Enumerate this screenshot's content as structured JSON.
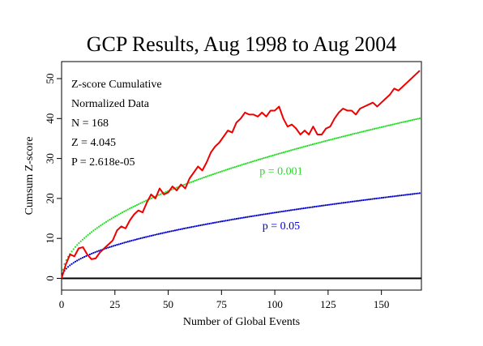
{
  "chart_data": {
    "type": "line",
    "title": "GCP Results, Aug 1998 to Aug 2004",
    "xlabel": "Number of Global Events",
    "ylabel": "Cumsum Z-score",
    "xlim": [
      0,
      168
    ],
    "ylim": [
      -1,
      55
    ],
    "xticks": [
      0,
      25,
      50,
      75,
      100,
      125,
      150
    ],
    "yticks": [
      0,
      10,
      20,
      30,
      40,
      50
    ],
    "grid": false,
    "info_box": [
      "Z-score Cumulative",
      "Normalized Data",
      "N = 168",
      "Z = 4.045",
      "P = 2.618e-05"
    ],
    "series": [
      {
        "kind": "cumulative",
        "color": "#ee0000",
        "points": [
          [
            0,
            0
          ],
          [
            2,
            3.5
          ],
          [
            4,
            6
          ],
          [
            6,
            5.5
          ],
          [
            8,
            7.5
          ],
          [
            10,
            7.8
          ],
          [
            12,
            6
          ],
          [
            14,
            4.8
          ],
          [
            16,
            5
          ],
          [
            18,
            6.5
          ],
          [
            20,
            7.5
          ],
          [
            22,
            8.5
          ],
          [
            24,
            9.5
          ],
          [
            26,
            12
          ],
          [
            28,
            13
          ],
          [
            30,
            12.5
          ],
          [
            32,
            14.5
          ],
          [
            34,
            16
          ],
          [
            36,
            17
          ],
          [
            38,
            16.5
          ],
          [
            40,
            19
          ],
          [
            42,
            21
          ],
          [
            44,
            20
          ],
          [
            46,
            22.5
          ],
          [
            48,
            21
          ],
          [
            50,
            21.5
          ],
          [
            52,
            23
          ],
          [
            54,
            22
          ],
          [
            56,
            23.5
          ],
          [
            58,
            22.5
          ],
          [
            60,
            25
          ],
          [
            62,
            26.5
          ],
          [
            64,
            28
          ],
          [
            66,
            27
          ],
          [
            68,
            29
          ],
          [
            70,
            31.5
          ],
          [
            72,
            33
          ],
          [
            74,
            34
          ],
          [
            76,
            35.5
          ],
          [
            78,
            37
          ],
          [
            80,
            36.5
          ],
          [
            82,
            39
          ],
          [
            84,
            40
          ],
          [
            86,
            41.5
          ],
          [
            88,
            41
          ],
          [
            90,
            41
          ],
          [
            92,
            40.5
          ],
          [
            94,
            41.5
          ],
          [
            96,
            40.5
          ],
          [
            98,
            42
          ],
          [
            100,
            42
          ],
          [
            102,
            43
          ],
          [
            104,
            40
          ],
          [
            106,
            38
          ],
          [
            108,
            38.5
          ],
          [
            110,
            37.5
          ],
          [
            112,
            36
          ],
          [
            114,
            37
          ],
          [
            116,
            36
          ],
          [
            118,
            38
          ],
          [
            120,
            36
          ],
          [
            122,
            36
          ],
          [
            124,
            37.5
          ],
          [
            126,
            38
          ],
          [
            128,
            40
          ],
          [
            130,
            41.5
          ],
          [
            132,
            42.5
          ],
          [
            134,
            42
          ],
          [
            136,
            42
          ],
          [
            138,
            41
          ],
          [
            140,
            42.5
          ],
          [
            142,
            43
          ],
          [
            144,
            43.5
          ],
          [
            146,
            44
          ],
          [
            148,
            43
          ],
          [
            150,
            44
          ],
          [
            152,
            45
          ],
          [
            154,
            46
          ],
          [
            156,
            47.5
          ],
          [
            158,
            47
          ],
          [
            160,
            48
          ],
          [
            162,
            49
          ],
          [
            164,
            50
          ],
          [
            166,
            51
          ],
          [
            168,
            52
          ]
        ]
      },
      {
        "kind": "threshold",
        "label": "p = 0.001",
        "color": "#22dd22",
        "label_pos": [
          103,
          26
        ],
        "coefficient": 3.09
      },
      {
        "kind": "threshold",
        "label": "p = 0.05",
        "color": "#0000cc",
        "label_pos": [
          103,
          12.3
        ],
        "coefficient": 1.645
      }
    ]
  }
}
